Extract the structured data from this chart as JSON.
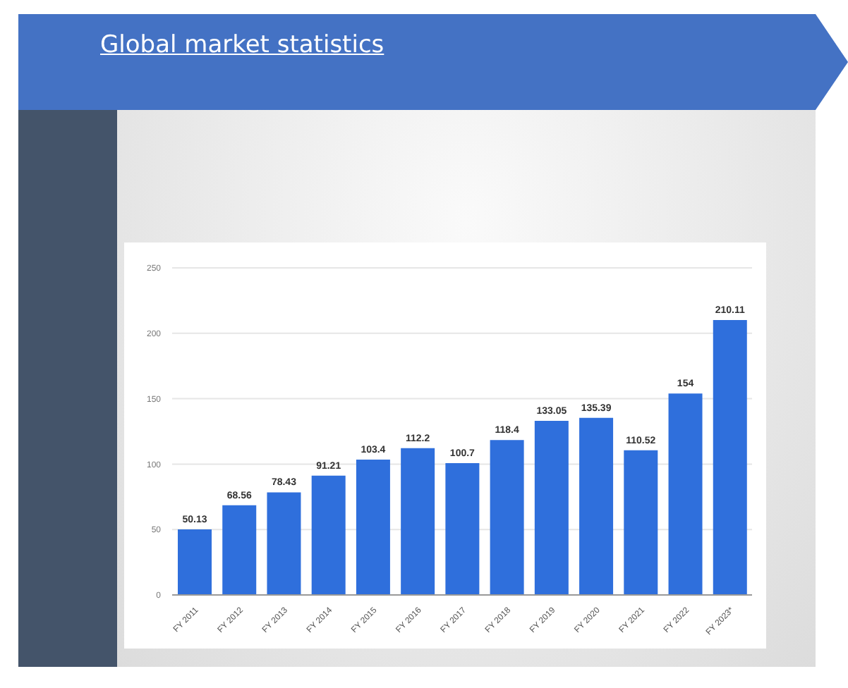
{
  "chart_data": {
    "type": "bar",
    "title": "Global market statistics",
    "categories": [
      "FY 2011",
      "FY 2012",
      "FY 2013",
      "FY 2014",
      "FY 2015",
      "FY 2016",
      "FY 2017",
      "FY 2018",
      "FY 2019",
      "FY 2020",
      "FY 2021",
      "FY 2022",
      "FY 2023*"
    ],
    "values": [
      50.13,
      68.56,
      78.43,
      91.21,
      103.4,
      112.2,
      100.7,
      118.4,
      133.05,
      135.39,
      110.52,
      154,
      210.11
    ],
    "color": "#2f6fdc",
    "ylim": [
      0,
      250
    ],
    "yticks": [
      0,
      50,
      100,
      150,
      200,
      250
    ],
    "grid": "y",
    "data_labels": true
  }
}
